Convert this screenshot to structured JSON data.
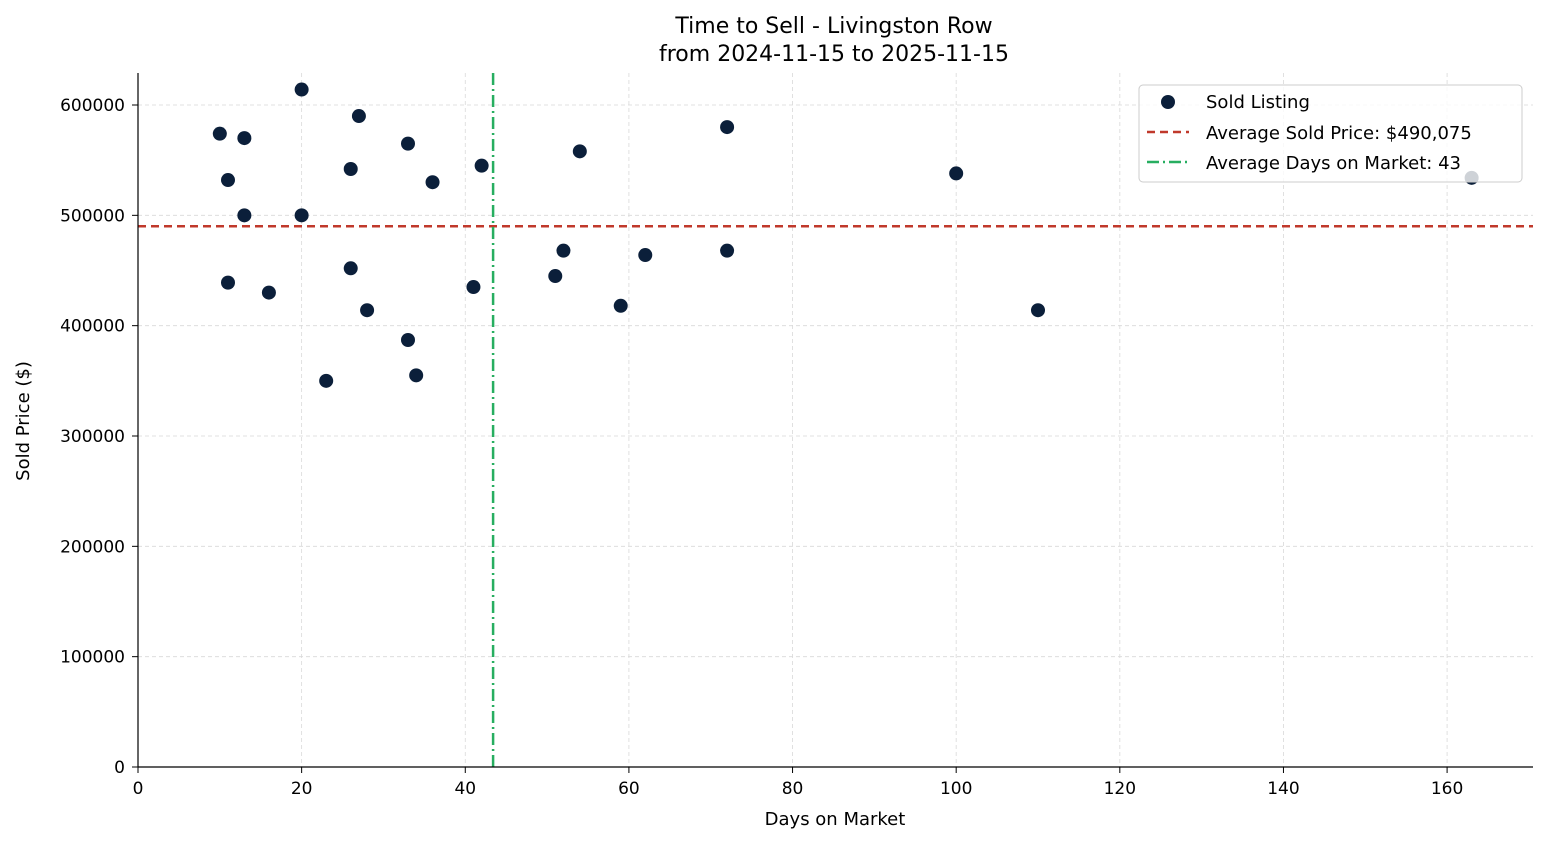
{
  "chart_data": {
    "type": "scatter",
    "title_line1": "Time to Sell - Livingston Row",
    "title_line2": "from 2024-11-15 to 2025-11-15",
    "xlabel": "Days on Market",
    "ylabel": "Sold Price ($)",
    "xlim": [
      0,
      170.5
    ],
    "ylim": [
      0,
      629000
    ],
    "xticks": [
      0,
      20,
      40,
      60,
      80,
      100,
      120,
      140,
      160
    ],
    "xtick_labels": [
      "0",
      "20",
      "40",
      "60",
      "80",
      "100",
      "120",
      "140",
      "160"
    ],
    "yticks": [
      0,
      100000,
      200000,
      300000,
      400000,
      500000,
      600000
    ],
    "ytick_labels": [
      "0",
      "100000",
      "200000",
      "300000",
      "400000",
      "500000",
      "600000"
    ],
    "grid": true,
    "legend_position": "top-right",
    "series": [
      {
        "name": "Sold Listing",
        "color": "#0b1f3a",
        "points": [
          [
            10,
            574000
          ],
          [
            11,
            532000
          ],
          [
            11,
            439000
          ],
          [
            13,
            570000
          ],
          [
            13,
            500000
          ],
          [
            16,
            430000
          ],
          [
            20,
            614000
          ],
          [
            20,
            500000
          ],
          [
            23,
            350000
          ],
          [
            26,
            542000
          ],
          [
            26,
            452000
          ],
          [
            27,
            590000
          ],
          [
            28,
            414000
          ],
          [
            33,
            565000
          ],
          [
            33,
            387000
          ],
          [
            34,
            355000
          ],
          [
            36,
            530000
          ],
          [
            41,
            435000
          ],
          [
            42,
            545000
          ],
          [
            51,
            445000
          ],
          [
            52,
            468000
          ],
          [
            54,
            558000
          ],
          [
            59,
            418000
          ],
          [
            62,
            464000
          ],
          [
            72,
            580000
          ],
          [
            72,
            468000
          ],
          [
            100,
            538000
          ],
          [
            110,
            414000
          ],
          [
            163,
            534000
          ]
        ]
      }
    ],
    "reference_lines": [
      {
        "name": "Average Sold Price: $490,075",
        "orientation": "horizontal",
        "value": 490075,
        "color": "#c0392b",
        "style": "dashed"
      },
      {
        "name": "Average Days on Market: 43",
        "orientation": "vertical",
        "value": 43.4,
        "color": "#27ae60",
        "style": "dashdot"
      }
    ],
    "legend": [
      {
        "label": "Sold Listing",
        "kind": "marker"
      },
      {
        "label": "Average Sold Price: $490,075",
        "kind": "dashed"
      },
      {
        "label": "Average Days on Market: 43",
        "kind": "dashdot"
      }
    ]
  }
}
